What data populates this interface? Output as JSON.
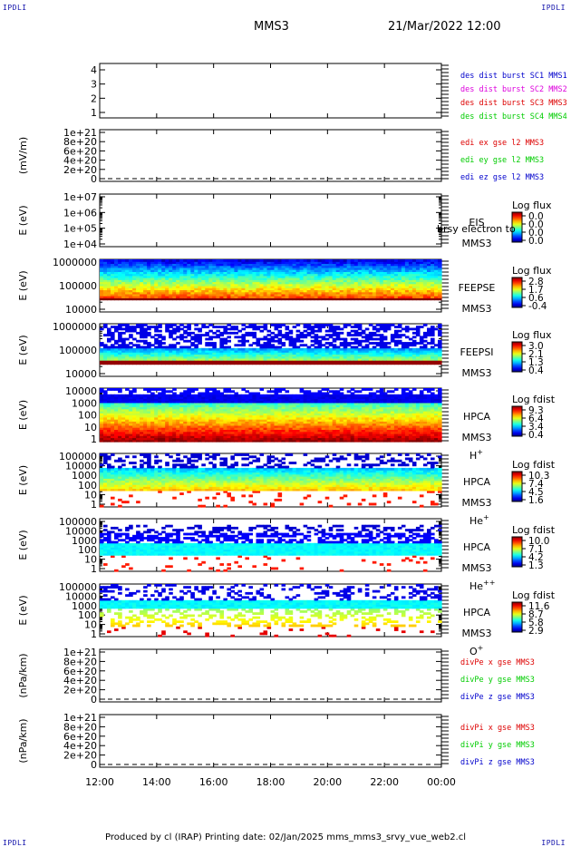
{
  "header": {
    "corner_label": "IPDLI",
    "spacecraft": "MMS3",
    "datetime": "21/Mar/2022 12:00"
  },
  "footer": {
    "text": "Produced by cl (IRAP)   Printing date: 02/Jan/2025   mms_mms3_srvy_vue_web2.cl"
  },
  "colors": {
    "red": "#dd0000",
    "green": "#00cc00",
    "blue": "#0000cc",
    "magenta": "#dd00dd",
    "axis": "#000000"
  },
  "chart_data": [
    {
      "type": "line",
      "id": "p1",
      "yticks": [
        "1",
        "2",
        "3",
        "4"
      ],
      "ylim": [
        0.6,
        4.3
      ],
      "ylabel": "",
      "legend": [
        {
          "label": "des dist burst SC1 MMS1",
          "color": "#0000cc"
        },
        {
          "label": "des dist burst SC2 MMS2",
          "color": "#dd00dd"
        },
        {
          "label": "des dist burst SC3 MMS3",
          "color": "#dd0000"
        },
        {
          "label": "des dist burst SC4 MMS4",
          "color": "#00cc00"
        }
      ]
    },
    {
      "type": "line",
      "id": "p2",
      "ylabel": "(mV/m)",
      "yticks": [
        "0",
        "2e+20",
        "4e+20",
        "6e+20",
        "8e+20",
        "1e+21"
      ],
      "legend": [
        {
          "label": "edi ex gse l2 MMS3",
          "color": "#dd0000"
        },
        {
          "label": "edi ey gse l2 MMS3",
          "color": "#00cc00"
        },
        {
          "label": "edi ez gse l2 MMS3",
          "color": "#0000cc"
        }
      ]
    },
    {
      "type": "heatmap",
      "id": "p3",
      "ylabel": "E (eV)",
      "scale": "log",
      "yticks": [
        "1e+04",
        "1e+05",
        "1e+06",
        "1e+07"
      ],
      "labels": [
        "EIS",
        "MMS3"
      ],
      "overlay": "brsy electron to",
      "colorbar": {
        "title": "Log flux",
        "ticks": [
          "0.0",
          "0.0",
          "0.0",
          "0.0"
        ]
      }
    },
    {
      "type": "heatmap",
      "id": "p4",
      "ylabel": "E (eV)",
      "scale": "log",
      "yticks": [
        "10000",
        "100000",
        "1000000"
      ],
      "labels": [
        "FEEPSE",
        "MMS3"
      ],
      "colorbar": {
        "title": "Log flux",
        "ticks": [
          "2.8",
          "1.7",
          "0.6",
          "-0.4"
        ]
      }
    },
    {
      "type": "heatmap",
      "id": "p5",
      "ylabel": "E (eV)",
      "scale": "log",
      "yticks": [
        "10000",
        "100000",
        "1000000"
      ],
      "labels": [
        "FEEPSI",
        "MMS3"
      ],
      "colorbar": {
        "title": "Log flux",
        "ticks": [
          "3.0",
          "2.1",
          "1.3",
          "0.4"
        ]
      }
    },
    {
      "type": "heatmap",
      "id": "p6",
      "ylabel": "E (eV)",
      "scale": "log",
      "yticks": [
        "1",
        "10",
        "100",
        "1000",
        "10000"
      ],
      "labels": [
        "HPCA",
        "MMS3"
      ],
      "species": "H",
      "species_sup": "+",
      "colorbar": {
        "title": "Log fdist",
        "ticks": [
          "9.3",
          "6.4",
          "3.4",
          "0.4"
        ]
      }
    },
    {
      "type": "heatmap",
      "id": "p7",
      "ylabel": "E (eV)",
      "scale": "log",
      "yticks": [
        "1",
        "10",
        "100",
        "1000",
        "10000",
        "100000"
      ],
      "labels": [
        "HPCA",
        "MMS3"
      ],
      "species": "He",
      "species_sup": "+",
      "colorbar": {
        "title": "Log fdist",
        "ticks": [
          "10.3",
          "7.4",
          "4.5",
          "1.6"
        ]
      }
    },
    {
      "type": "heatmap",
      "id": "p8",
      "ylabel": "E (eV)",
      "scale": "log",
      "yticks": [
        "1",
        "10",
        "100",
        "1000",
        "10000",
        "100000"
      ],
      "labels": [
        "HPCA",
        "MMS3"
      ],
      "species": "He",
      "species_sup": "++",
      "colorbar": {
        "title": "Log fdist",
        "ticks": [
          "10.0",
          "7.1",
          "4.2",
          "1.3"
        ]
      }
    },
    {
      "type": "heatmap",
      "id": "p9",
      "ylabel": "E (eV)",
      "scale": "log",
      "yticks": [
        "1",
        "10",
        "100",
        "1000",
        "10000",
        "100000"
      ],
      "labels": [
        "HPCA",
        "MMS3"
      ],
      "species": "O",
      "species_sup": "+",
      "colorbar": {
        "title": "Log fdist",
        "ticks": [
          "11.6",
          "8.7",
          "5.8",
          "2.9"
        ]
      }
    },
    {
      "type": "line",
      "id": "p10",
      "ylabel": "(nPa/km)",
      "yticks": [
        "0",
        "2e+20",
        "4e+20",
        "6e+20",
        "8e+20",
        "1e+21"
      ],
      "legend": [
        {
          "label": "divPe x gse MMS3",
          "color": "#dd0000"
        },
        {
          "label": "divPe y gse MMS3",
          "color": "#00cc00"
        },
        {
          "label": "divPe z gse MMS3",
          "color": "#0000cc"
        }
      ]
    },
    {
      "type": "line",
      "id": "p11",
      "ylabel": "(nPa/km)",
      "yticks": [
        "0",
        "2e+20",
        "4e+20",
        "6e+20",
        "8e+20",
        "1e+21"
      ],
      "legend": [
        {
          "label": "divPi x gse MMS3",
          "color": "#dd0000"
        },
        {
          "label": "divPi y gse MMS3",
          "color": "#00cc00"
        },
        {
          "label": "divPi z gse MMS3",
          "color": "#0000cc"
        }
      ]
    }
  ],
  "xaxis": {
    "ticks": [
      "12:00",
      "14:00",
      "16:00",
      "18:00",
      "20:00",
      "22:00",
      "00:00"
    ]
  }
}
